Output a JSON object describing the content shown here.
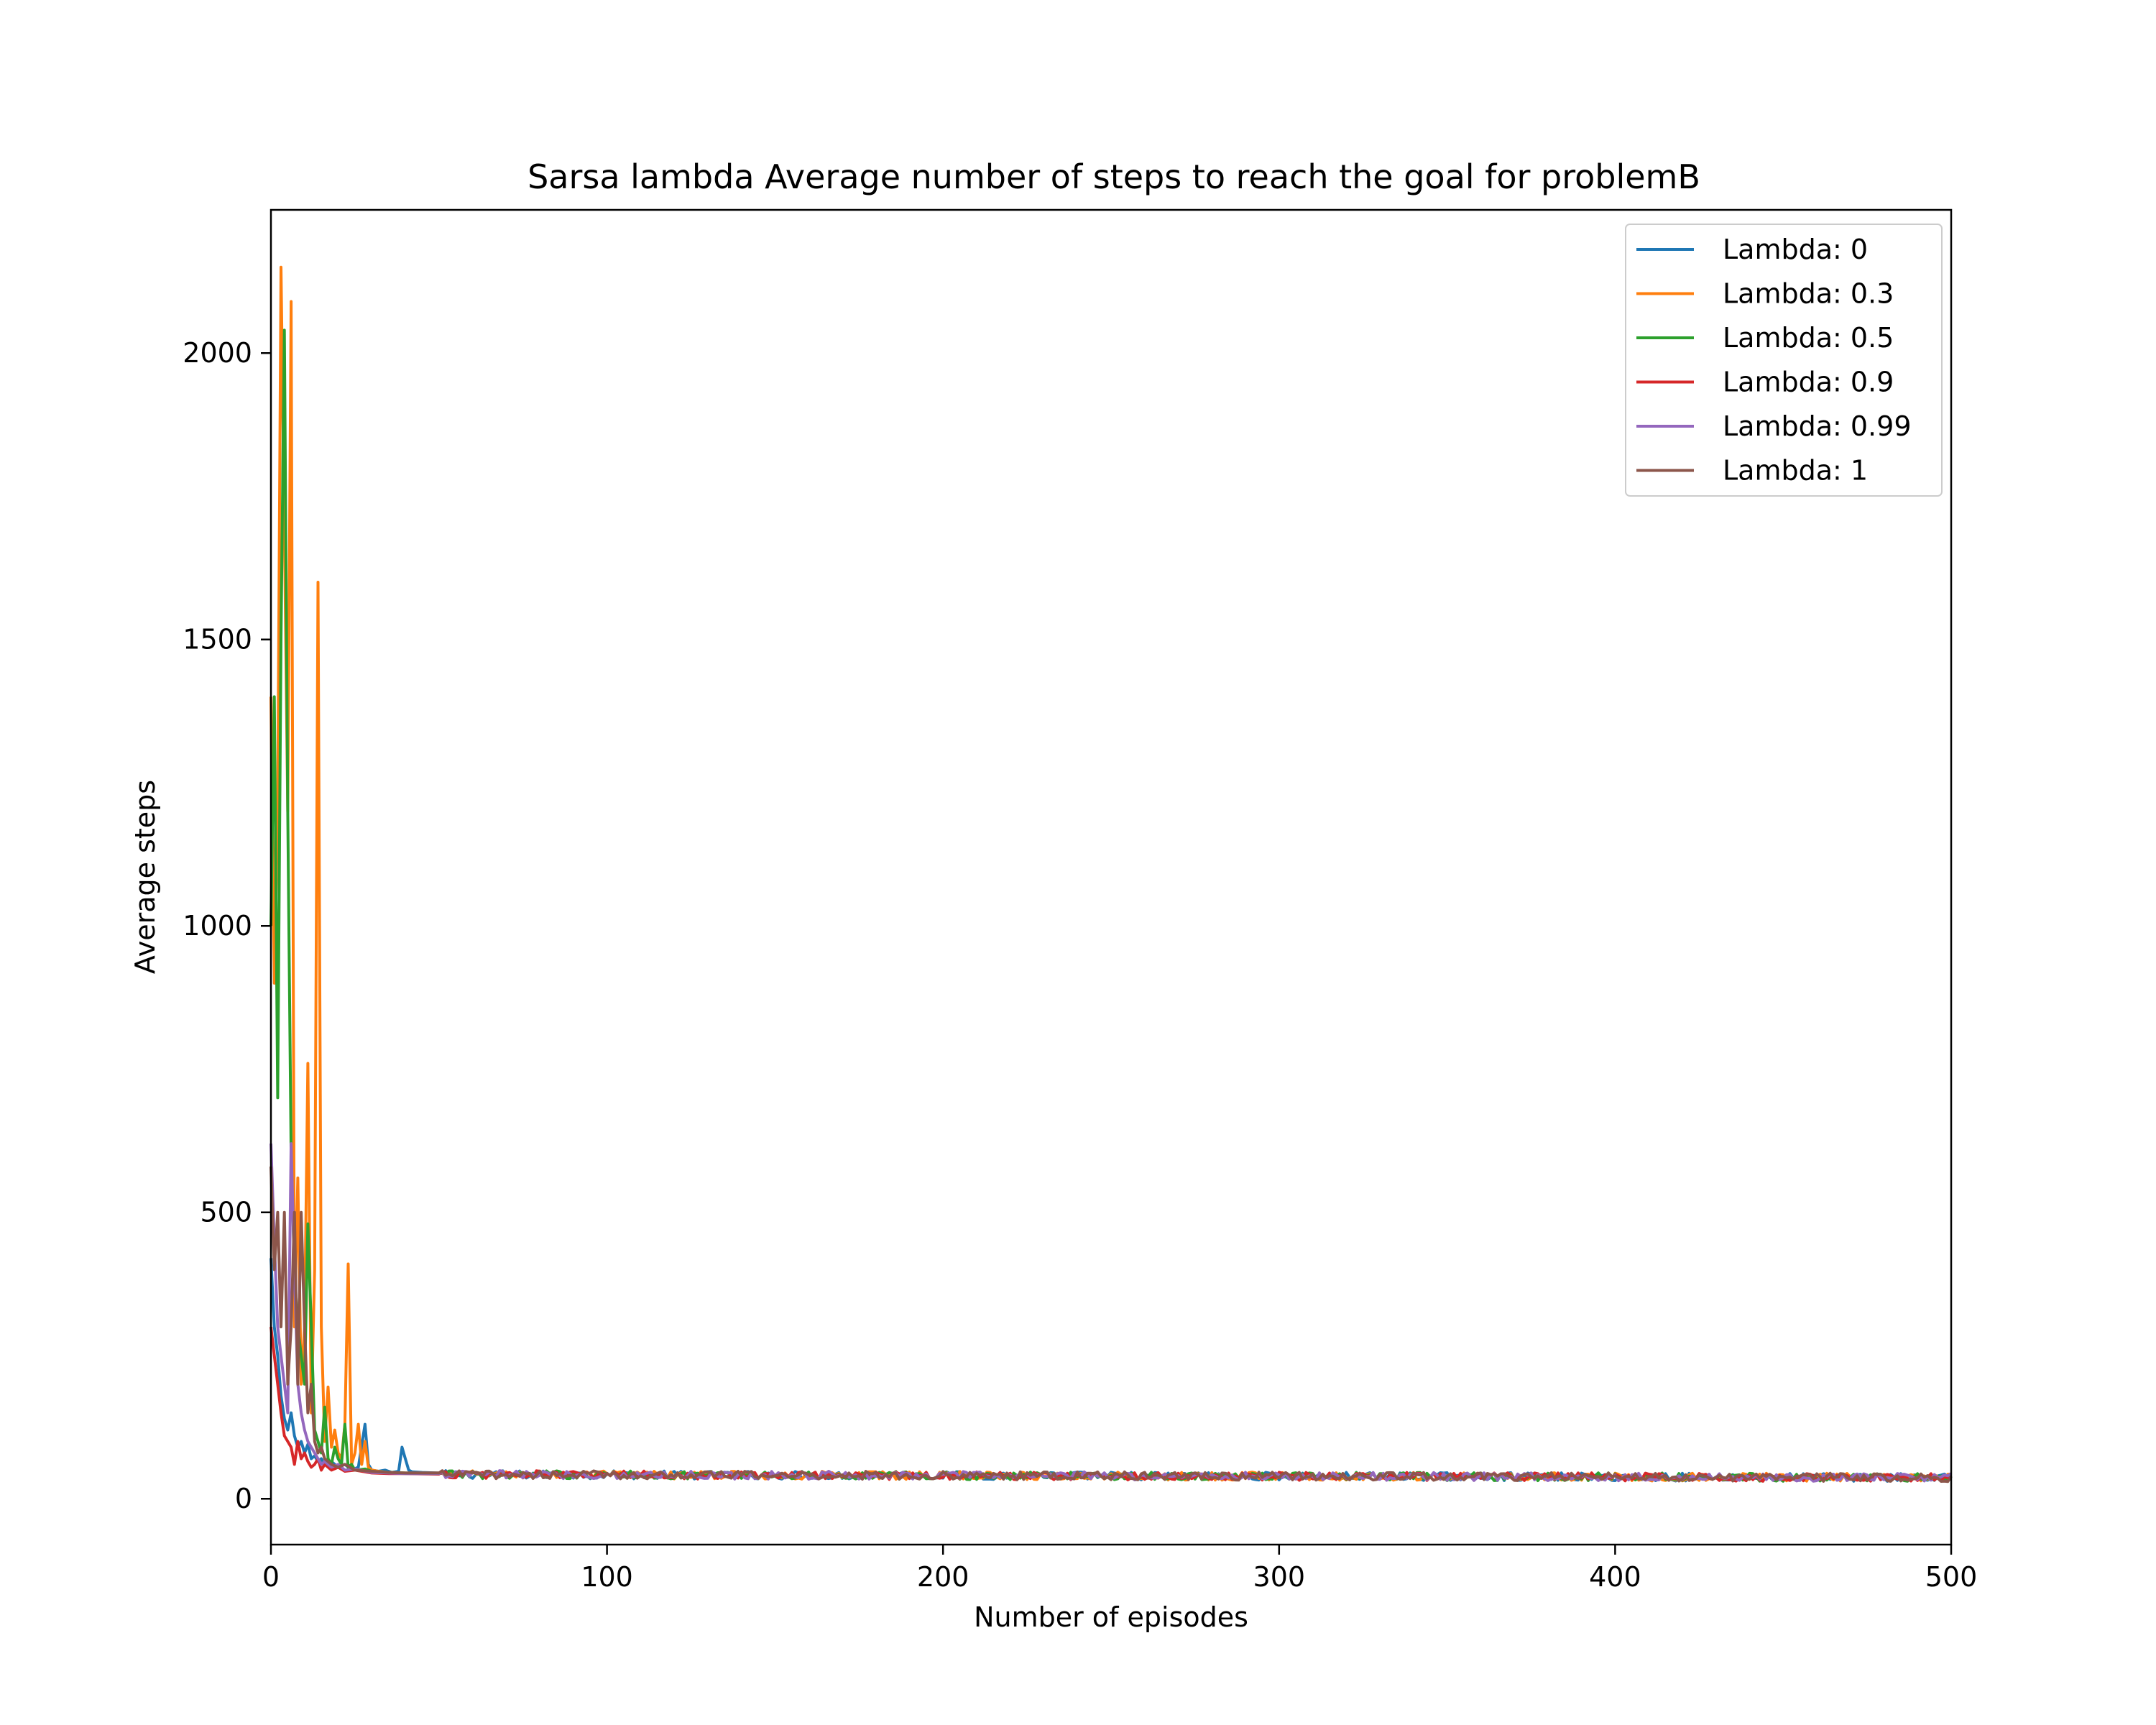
{
  "chart_data": {
    "type": "line",
    "title": "Sarsa lambda Average number of steps to reach the goal for problemB",
    "xlabel": "Number of episodes",
    "ylabel": "Average steps",
    "xlim": [
      0,
      500
    ],
    "ylim": [
      -80,
      2250
    ],
    "xticks": [
      0,
      100,
      200,
      300,
      400,
      500
    ],
    "yticks": [
      0,
      500,
      1000,
      1500,
      2000
    ],
    "grid": false,
    "legend_position": "top-right",
    "tail_value": 43,
    "series": [
      {
        "name": "Lambda: 0",
        "color": "#1f77b4",
        "points": [
          [
            0,
            420
          ],
          [
            1,
            300
          ],
          [
            2,
            250
          ],
          [
            3,
            180
          ],
          [
            4,
            140
          ],
          [
            5,
            120
          ],
          [
            6,
            150
          ],
          [
            7,
            110
          ],
          [
            8,
            90
          ],
          [
            9,
            100
          ],
          [
            10,
            80
          ],
          [
            11,
            95
          ],
          [
            12,
            70
          ],
          [
            13,
            75
          ],
          [
            14,
            65
          ],
          [
            15,
            70
          ],
          [
            16,
            60
          ],
          [
            18,
            65
          ],
          [
            20,
            55
          ],
          [
            22,
            60
          ],
          [
            24,
            50
          ],
          [
            26,
            55
          ],
          [
            28,
            130
          ],
          [
            29,
            60
          ],
          [
            30,
            50
          ],
          [
            32,
            48
          ],
          [
            34,
            50
          ],
          [
            36,
            46
          ],
          [
            38,
            48
          ],
          [
            39,
            90
          ],
          [
            40,
            70
          ],
          [
            41,
            50
          ],
          [
            42,
            47
          ],
          [
            45,
            46
          ],
          [
            50,
            45
          ]
        ]
      },
      {
        "name": "Lambda: 0.3",
        "color": "#ff7f0e",
        "points": [
          [
            0,
            1400
          ],
          [
            1,
            900
          ],
          [
            2,
            1200
          ],
          [
            3,
            2150
          ],
          [
            4,
            1700
          ],
          [
            5,
            1200
          ],
          [
            6,
            2090
          ],
          [
            7,
            300
          ],
          [
            8,
            560
          ],
          [
            9,
            200
          ],
          [
            10,
            300
          ],
          [
            11,
            760
          ],
          [
            12,
            150
          ],
          [
            13,
            400
          ],
          [
            14,
            1600
          ],
          [
            15,
            300
          ],
          [
            16,
            100
          ],
          [
            17,
            195
          ],
          [
            18,
            90
          ],
          [
            19,
            120
          ],
          [
            20,
            80
          ],
          [
            21,
            70
          ],
          [
            22,
            130
          ],
          [
            23,
            410
          ],
          [
            24,
            60
          ],
          [
            25,
            80
          ],
          [
            26,
            130
          ],
          [
            27,
            60
          ],
          [
            28,
            100
          ],
          [
            29,
            55
          ],
          [
            30,
            50
          ],
          [
            32,
            48
          ],
          [
            35,
            46
          ],
          [
            40,
            45
          ],
          [
            50,
            45
          ]
        ]
      },
      {
        "name": "Lambda: 0.5",
        "color": "#2ca02c",
        "points": [
          [
            0,
            1000
          ],
          [
            1,
            1400
          ],
          [
            2,
            700
          ],
          [
            3,
            1500
          ],
          [
            4,
            2040
          ],
          [
            5,
            1200
          ],
          [
            6,
            600
          ],
          [
            7,
            400
          ],
          [
            8,
            300
          ],
          [
            9,
            250
          ],
          [
            10,
            200
          ],
          [
            11,
            480
          ],
          [
            12,
            300
          ],
          [
            13,
            120
          ],
          [
            14,
            100
          ],
          [
            15,
            80
          ],
          [
            16,
            160
          ],
          [
            17,
            70
          ],
          [
            18,
            60
          ],
          [
            19,
            90
          ],
          [
            20,
            70
          ],
          [
            21,
            60
          ],
          [
            22,
            130
          ],
          [
            23,
            55
          ],
          [
            24,
            60
          ],
          [
            25,
            50
          ],
          [
            28,
            52
          ],
          [
            30,
            48
          ],
          [
            35,
            46
          ],
          [
            40,
            45
          ],
          [
            50,
            44
          ]
        ]
      },
      {
        "name": "Lambda: 0.9",
        "color": "#d62728",
        "points": [
          [
            0,
            300
          ],
          [
            1,
            250
          ],
          [
            2,
            200
          ],
          [
            3,
            150
          ],
          [
            4,
            110
          ],
          [
            5,
            100
          ],
          [
            6,
            90
          ],
          [
            7,
            60
          ],
          [
            8,
            100
          ],
          [
            9,
            70
          ],
          [
            10,
            80
          ],
          [
            11,
            65
          ],
          [
            12,
            55
          ],
          [
            13,
            60
          ],
          [
            14,
            70
          ],
          [
            15,
            50
          ],
          [
            16,
            60
          ],
          [
            18,
            50
          ],
          [
            20,
            55
          ],
          [
            22,
            48
          ],
          [
            25,
            50
          ],
          [
            30,
            45
          ],
          [
            35,
            44
          ],
          [
            40,
            44
          ],
          [
            50,
            43
          ]
        ]
      },
      {
        "name": "Lambda: 0.99",
        "color": "#9467bd",
        "points": [
          [
            0,
            620
          ],
          [
            1,
            450
          ],
          [
            2,
            300
          ],
          [
            3,
            250
          ],
          [
            4,
            200
          ],
          [
            5,
            150
          ],
          [
            6,
            620
          ],
          [
            7,
            400
          ],
          [
            8,
            200
          ],
          [
            9,
            150
          ],
          [
            10,
            120
          ],
          [
            11,
            100
          ],
          [
            12,
            90
          ],
          [
            13,
            80
          ],
          [
            14,
            70
          ],
          [
            15,
            60
          ],
          [
            16,
            65
          ],
          [
            18,
            55
          ],
          [
            20,
            60
          ],
          [
            22,
            50
          ],
          [
            25,
            52
          ],
          [
            30,
            46
          ],
          [
            35,
            45
          ],
          [
            40,
            44
          ],
          [
            50,
            44
          ]
        ]
      },
      {
        "name": "Lambda: 1",
        "color": "#8c564b",
        "points": [
          [
            0,
            580
          ],
          [
            1,
            400
          ],
          [
            2,
            500
          ],
          [
            3,
            300
          ],
          [
            4,
            500
          ],
          [
            5,
            200
          ],
          [
            6,
            300
          ],
          [
            7,
            500
          ],
          [
            8,
            200
          ],
          [
            9,
            500
          ],
          [
            10,
            300
          ],
          [
            11,
            150
          ],
          [
            12,
            200
          ],
          [
            13,
            100
          ],
          [
            14,
            80
          ],
          [
            15,
            90
          ],
          [
            16,
            70
          ],
          [
            18,
            60
          ],
          [
            20,
            55
          ],
          [
            22,
            60
          ],
          [
            25,
            50
          ],
          [
            30,
            48
          ],
          [
            35,
            46
          ],
          [
            40,
            45
          ],
          [
            50,
            45
          ]
        ]
      }
    ]
  }
}
